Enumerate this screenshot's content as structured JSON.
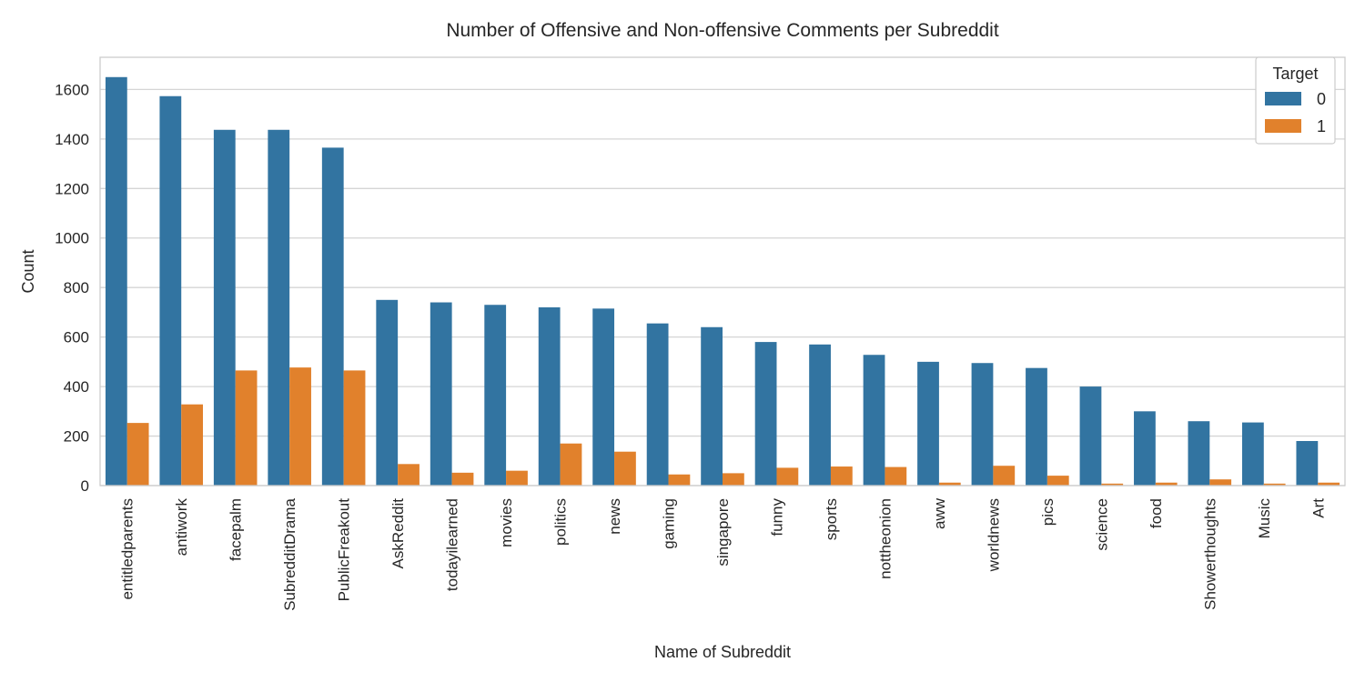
{
  "chart_data": {
    "type": "bar",
    "title": "Number of Offensive and Non-offensive Comments per Subreddit",
    "xlabel": "Name of Subreddit",
    "ylabel": "Count",
    "ylim": [
      0,
      1730
    ],
    "yticks": [
      0,
      200,
      400,
      600,
      800,
      1000,
      1200,
      1400,
      1600
    ],
    "grid": "horizontal",
    "legend": {
      "title": "Target",
      "placement": "top-right"
    },
    "categories": [
      "entitledparents",
      "antiwork",
      "facepalm",
      "SubredditDrama",
      "PublicFreakout",
      "AskReddit",
      "todayilearned",
      "movies",
      "politics",
      "news",
      "gaming",
      "singapore",
      "funny",
      "sports",
      "nottheonion",
      "aww",
      "worldnews",
      "pics",
      "science",
      "food",
      "Showerthoughts",
      "Music",
      "Art"
    ],
    "series": [
      {
        "name": "0",
        "color": "#3274a1",
        "values": [
          1650,
          1573,
          1437,
          1437,
          1365,
          750,
          740,
          730,
          720,
          715,
          655,
          640,
          580,
          570,
          528,
          500,
          495,
          475,
          400,
          300,
          260,
          255,
          180
        ]
      },
      {
        "name": "1",
        "color": "#e1812c",
        "values": [
          253,
          328,
          465,
          477,
          465,
          87,
          52,
          60,
          170,
          137,
          45,
          50,
          72,
          77,
          75,
          12,
          80,
          40,
          8,
          12,
          25,
          8,
          12
        ]
      }
    ]
  }
}
